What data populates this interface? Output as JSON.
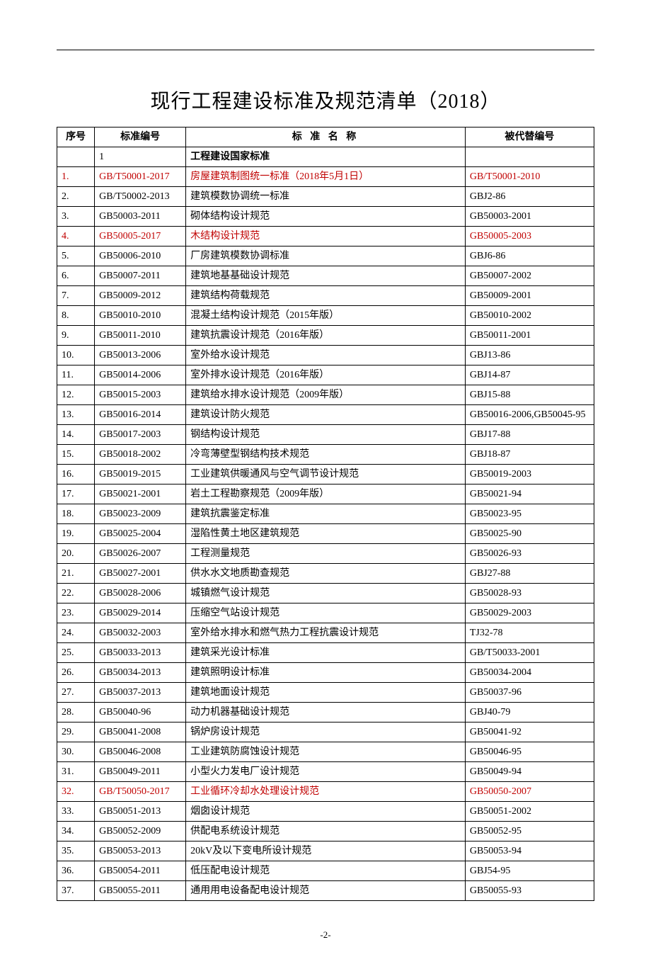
{
  "page": {
    "title": "现行工程建设标准及规范清单（2018）",
    "footer": "-2-"
  },
  "headers": {
    "seq": "序号",
    "code": "标准编号",
    "name": "标 准 名 称",
    "replaced": "被代替编号"
  },
  "section": {
    "num": "1",
    "title": "工程建设国家标准"
  },
  "colors": {
    "highlight": "#c00000",
    "text": "#000000",
    "border": "#000000",
    "background": "#ffffff"
  },
  "typography": {
    "title_fontsize": 28,
    "body_fontsize": 14,
    "footer_fontsize": 13,
    "font_family": "SimSun"
  },
  "table": {
    "column_widths_pct": [
      7,
      17,
      52,
      24
    ]
  },
  "rows": [
    {
      "seq": "1.",
      "code": "GB/T50001-2017",
      "name": "房屋建筑制图统一标准（2018年5月1日）",
      "replaced": "GB/T50001-2010",
      "hl": true
    },
    {
      "seq": "2.",
      "code": "GB/T50002-2013",
      "name": "建筑模数协调统一标准",
      "replaced": "GBJ2-86",
      "hl": false
    },
    {
      "seq": "3.",
      "code": "GB50003-2011",
      "name": "砌体结构设计规范",
      "replaced": "GB50003-2001",
      "hl": false
    },
    {
      "seq": "4.",
      "code": "GB50005-2017",
      "name": "木结构设计规范",
      "replaced": "GB50005-2003",
      "hl": true
    },
    {
      "seq": "5.",
      "code": "GB50006-2010",
      "name": "厂房建筑模数协调标准",
      "replaced": "GBJ6-86",
      "hl": false
    },
    {
      "seq": "6.",
      "code": "GB50007-2011",
      "name": "建筑地基基础设计规范",
      "replaced": "GB50007-2002",
      "hl": false
    },
    {
      "seq": "7.",
      "code": "GB50009-2012",
      "name": "建筑结构荷载规范",
      "replaced": "GB50009-2001",
      "hl": false
    },
    {
      "seq": "8.",
      "code": "GB50010-2010",
      "name": "混凝土结构设计规范（2015年版）",
      "replaced": "GB50010-2002",
      "hl": false
    },
    {
      "seq": "9.",
      "code": "GB50011-2010",
      "name": "建筑抗震设计规范（2016年版）",
      "replaced": "GB50011-2001",
      "hl": false
    },
    {
      "seq": "10.",
      "code": "GB50013-2006",
      "name": "室外给水设计规范",
      "replaced": "GBJ13-86",
      "hl": false
    },
    {
      "seq": "11.",
      "code": "GB50014-2006",
      "name": "室外排水设计规范（2016年版）",
      "replaced": "GBJ14-87",
      "hl": false
    },
    {
      "seq": "12.",
      "code": "GB50015-2003",
      "name": "建筑给水排水设计规范（2009年版）",
      "replaced": "GBJ15-88",
      "hl": false
    },
    {
      "seq": "13.",
      "code": "GB50016-2014",
      "name": "建筑设计防火规范",
      "replaced": "GB50016-2006,GB50045-95",
      "hl": false
    },
    {
      "seq": "14.",
      "code": "GB50017-2003",
      "name": "钢结构设计规范",
      "replaced": "GBJ17-88",
      "hl": false
    },
    {
      "seq": "15.",
      "code": "GB50018-2002",
      "name": "冷弯薄壁型钢结构技术规范",
      "replaced": "GBJ18-87",
      "hl": false
    },
    {
      "seq": "16.",
      "code": "GB50019-2015",
      "name": "工业建筑供暖通风与空气调节设计规范",
      "replaced": "GB50019-2003",
      "hl": false
    },
    {
      "seq": "17.",
      "code": "GB50021-2001",
      "name": "岩土工程勘察规范（2009年版）",
      "replaced": "GB50021-94",
      "hl": false
    },
    {
      "seq": "18.",
      "code": "GB50023-2009",
      "name": "建筑抗震鉴定标准",
      "replaced": "GB50023-95",
      "hl": false
    },
    {
      "seq": "19.",
      "code": "GB50025-2004",
      "name": "湿陷性黄土地区建筑规范",
      "replaced": "GB50025-90",
      "hl": false
    },
    {
      "seq": "20.",
      "code": "GB50026-2007",
      "name": "工程测量规范",
      "replaced": "GB50026-93",
      "hl": false
    },
    {
      "seq": "21.",
      "code": "GB50027-2001",
      "name": "供水水文地质勘查规范",
      "replaced": "GBJ27-88",
      "hl": false
    },
    {
      "seq": "22.",
      "code": "GB50028-2006",
      "name": "城镇燃气设计规范",
      "replaced": "GB50028-93",
      "hl": false
    },
    {
      "seq": "23.",
      "code": "GB50029-2014",
      "name": "压缩空气站设计规范",
      "replaced": "GB50029-2003",
      "hl": false
    },
    {
      "seq": "24.",
      "code": "GB50032-2003",
      "name": "室外给水排水和燃气热力工程抗震设计规范",
      "replaced": "TJ32-78",
      "hl": false
    },
    {
      "seq": "25.",
      "code": "GB50033-2013",
      "name": "建筑采光设计标准",
      "replaced": "GB/T50033-2001",
      "hl": false
    },
    {
      "seq": "26.",
      "code": "GB50034-2013",
      "name": "建筑照明设计标准",
      "replaced": "GB50034-2004",
      "hl": false
    },
    {
      "seq": "27.",
      "code": "GB50037-2013",
      "name": "建筑地面设计规范",
      "replaced": "GB50037-96",
      "hl": false
    },
    {
      "seq": "28.",
      "code": "GB50040-96",
      "name": "动力机器基础设计规范",
      "replaced": "GBJ40-79",
      "hl": false
    },
    {
      "seq": "29.",
      "code": "GB50041-2008",
      "name": "锅炉房设计规范",
      "replaced": "GB50041-92",
      "hl": false
    },
    {
      "seq": "30.",
      "code": "GB50046-2008",
      "name": "工业建筑防腐蚀设计规范",
      "replaced": "GB50046-95",
      "hl": false
    },
    {
      "seq": "31.",
      "code": "GB50049-2011",
      "name": "小型火力发电厂设计规范",
      "replaced": "GB50049-94",
      "hl": false
    },
    {
      "seq": "32.",
      "code": "GB/T50050-2017",
      "name": "工业循环冷却水处理设计规范",
      "replaced": "GB50050-2007",
      "hl": true
    },
    {
      "seq": "33.",
      "code": "GB50051-2013",
      "name": "烟囱设计规范",
      "replaced": "GB50051-2002",
      "hl": false
    },
    {
      "seq": "34.",
      "code": "GB50052-2009",
      "name": "供配电系统设计规范",
      "replaced": "GB50052-95",
      "hl": false
    },
    {
      "seq": "35.",
      "code": "GB50053-2013",
      "name": "20kV及以下变电所设计规范",
      "replaced": "GB50053-94",
      "hl": false
    },
    {
      "seq": "36.",
      "code": "GB50054-2011",
      "name": "低压配电设计规范",
      "replaced": "GBJ54-95",
      "hl": false
    },
    {
      "seq": "37.",
      "code": "GB50055-2011",
      "name": "通用用电设备配电设计规范",
      "replaced": "GB50055-93",
      "hl": false
    }
  ]
}
